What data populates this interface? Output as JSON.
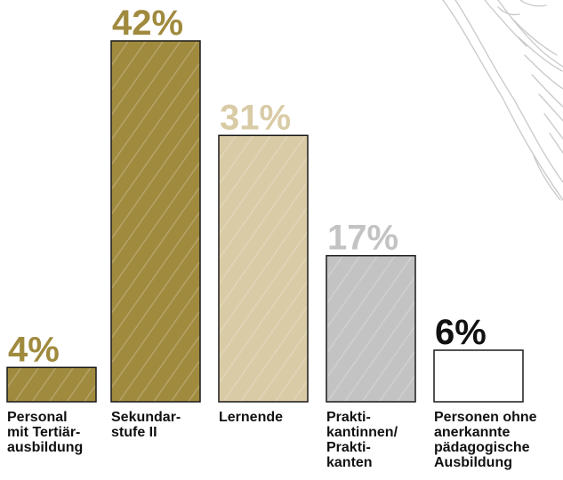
{
  "chart_data": {
    "type": "bar",
    "title": "",
    "xlabel": "",
    "ylabel": "",
    "ylim": [
      0,
      42
    ],
    "grid": false,
    "categories": [
      "Personal\nmit Tertiär-\nausbildung",
      "Sekundar-\nstufe II",
      "Lernende",
      "Prakti-\nkantinnen/\nPrakti-\nkanten",
      "Personen ohne\nanerkannte\npädagogische\nAusbildung"
    ],
    "values": [
      4,
      42,
      31,
      17,
      6
    ],
    "value_labels": [
      "4%",
      "42%",
      "31%",
      "17%",
      "6%"
    ],
    "colors": [
      "#a08a3e",
      "#a08a3e",
      "#d9cba6",
      "#c3c3c3",
      "#ffffff"
    ],
    "label_colors": [
      "#a08a3e",
      "#a08a3e",
      "#d9cba6",
      "#c3c3c3",
      "#111111"
    ]
  }
}
